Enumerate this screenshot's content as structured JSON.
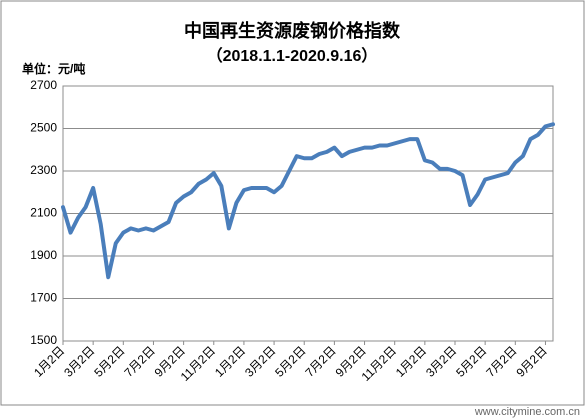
{
  "chart_data": {
    "type": "line",
    "title": "中国再生资源废钢价格指数",
    "subtitle": "（2018.1.1-2020.9.16）",
    "y_label": "单位：元/吨",
    "watermark": "www.citymine.com.cn",
    "categories": [
      "1月2日",
      null,
      null,
      null,
      "3月2日",
      null,
      null,
      null,
      "5月2日",
      null,
      null,
      null,
      "7月2日",
      null,
      null,
      null,
      "9月2日",
      null,
      null,
      null,
      "11月2日",
      null,
      null,
      null,
      "1月2日",
      null,
      null,
      null,
      "3月2日",
      null,
      null,
      null,
      "5月2日",
      null,
      null,
      null,
      "7月2日",
      null,
      null,
      null,
      "9月2日",
      null,
      null,
      null,
      "11月2日",
      null,
      null,
      null,
      "1月2日",
      null,
      null,
      null,
      "3月2日",
      null,
      null,
      null,
      "5月2日",
      null,
      null,
      null,
      "7月2日",
      null,
      null,
      null,
      "9月2日",
      null
    ],
    "series": [
      {
        "name": "中国再生资源废钢价格指数",
        "color": "#4a7ebb",
        "values": [
          2130,
          2010,
          2080,
          2130,
          2220,
          2050,
          1800,
          1960,
          2010,
          2030,
          2020,
          2030,
          2020,
          2040,
          2060,
          2150,
          2180,
          2200,
          2240,
          2260,
          2290,
          2230,
          2030,
          2150,
          2210,
          2220,
          2220,
          2220,
          2200,
          2230,
          2300,
          2370,
          2360,
          2360,
          2380,
          2390,
          2410,
          2370,
          2390,
          2400,
          2410,
          2410,
          2420,
          2420,
          2430,
          2440,
          2450,
          2450,
          2350,
          2340,
          2310,
          2310,
          2300,
          2280,
          2140,
          2190,
          2260,
          2270,
          2280,
          2290,
          2340,
          2370,
          2450,
          2470,
          2510,
          2520
        ]
      }
    ],
    "ylim": [
      1500,
      2700
    ],
    "yticks": [
      1500,
      1700,
      1900,
      2100,
      2300,
      2500,
      2700
    ],
    "grid": true
  }
}
